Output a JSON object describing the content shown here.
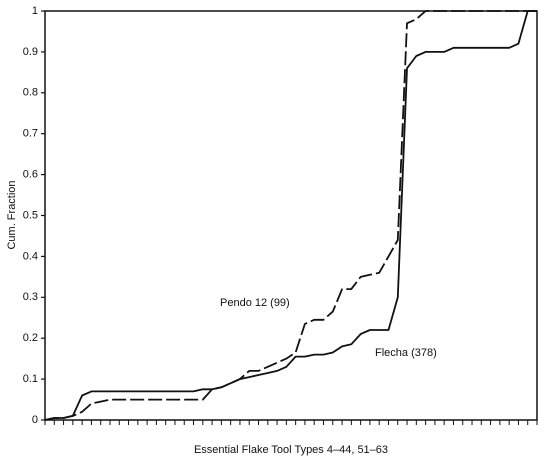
{
  "chart_data": {
    "type": "line",
    "x_label": "Essential Flake Tool Types 4–44, 51–63",
    "y_label": "Cum. Fraction",
    "categories": [
      null,
      null,
      null,
      null,
      null,
      null,
      null,
      null,
      null,
      null,
      null,
      null,
      null,
      null,
      null,
      null,
      null,
      null,
      null,
      null,
      null,
      null,
      null,
      null,
      null,
      null,
      null,
      null,
      null,
      null,
      null,
      null,
      null,
      null,
      null,
      null,
      null,
      null,
      null,
      null,
      null,
      null,
      null,
      null,
      null,
      null,
      null,
      null,
      null,
      null,
      null,
      null,
      null,
      null
    ],
    "series": [
      {
        "name": "Pendo 12 (99)",
        "color": "#111111",
        "dashed": true,
        "values": [
          0,
          0.005,
          0.005,
          0.01,
          0.02,
          0.04,
          0.045,
          0.05,
          0.05,
          0.05,
          0.05,
          0.05,
          0.05,
          0.05,
          0.05,
          0.05,
          0.05,
          0.05,
          0.075,
          0.08,
          0.09,
          0.1,
          0.12,
          0.12,
          0.13,
          0.14,
          0.15,
          0.165,
          0.235,
          0.245,
          0.245,
          0.265,
          0.32,
          0.32,
          0.35,
          0.355,
          0.36,
          0.4,
          0.44,
          0.97,
          0.98,
          1,
          1,
          1,
          1,
          1,
          1,
          1,
          1,
          1,
          1,
          1,
          1,
          1
        ]
      },
      {
        "name": "Flecha (378)",
        "color": "#111111",
        "dashed": false,
        "values": [
          0,
          0.005,
          0.005,
          0.01,
          0.06,
          0.07,
          0.07,
          0.07,
          0.07,
          0.07,
          0.07,
          0.07,
          0.07,
          0.07,
          0.07,
          0.07,
          0.07,
          0.075,
          0.075,
          0.08,
          0.09,
          0.1,
          0.105,
          0.11,
          0.115,
          0.12,
          0.13,
          0.155,
          0.155,
          0.16,
          0.16,
          0.165,
          0.18,
          0.185,
          0.21,
          0.22,
          0.22,
          0.22,
          0.3,
          0.86,
          0.89,
          0.9,
          0.9,
          0.9,
          0.91,
          0.91,
          0.91,
          0.91,
          0.91,
          0.91,
          0.91,
          0.92,
          1,
          1
        ]
      }
    ],
    "ylim": [
      0,
      1
    ],
    "yticks": [
      0,
      0.1,
      0.2,
      0.3,
      0.4,
      0.5,
      0.6,
      0.7,
      0.8,
      0.9,
      1
    ],
    "grid": false
  }
}
